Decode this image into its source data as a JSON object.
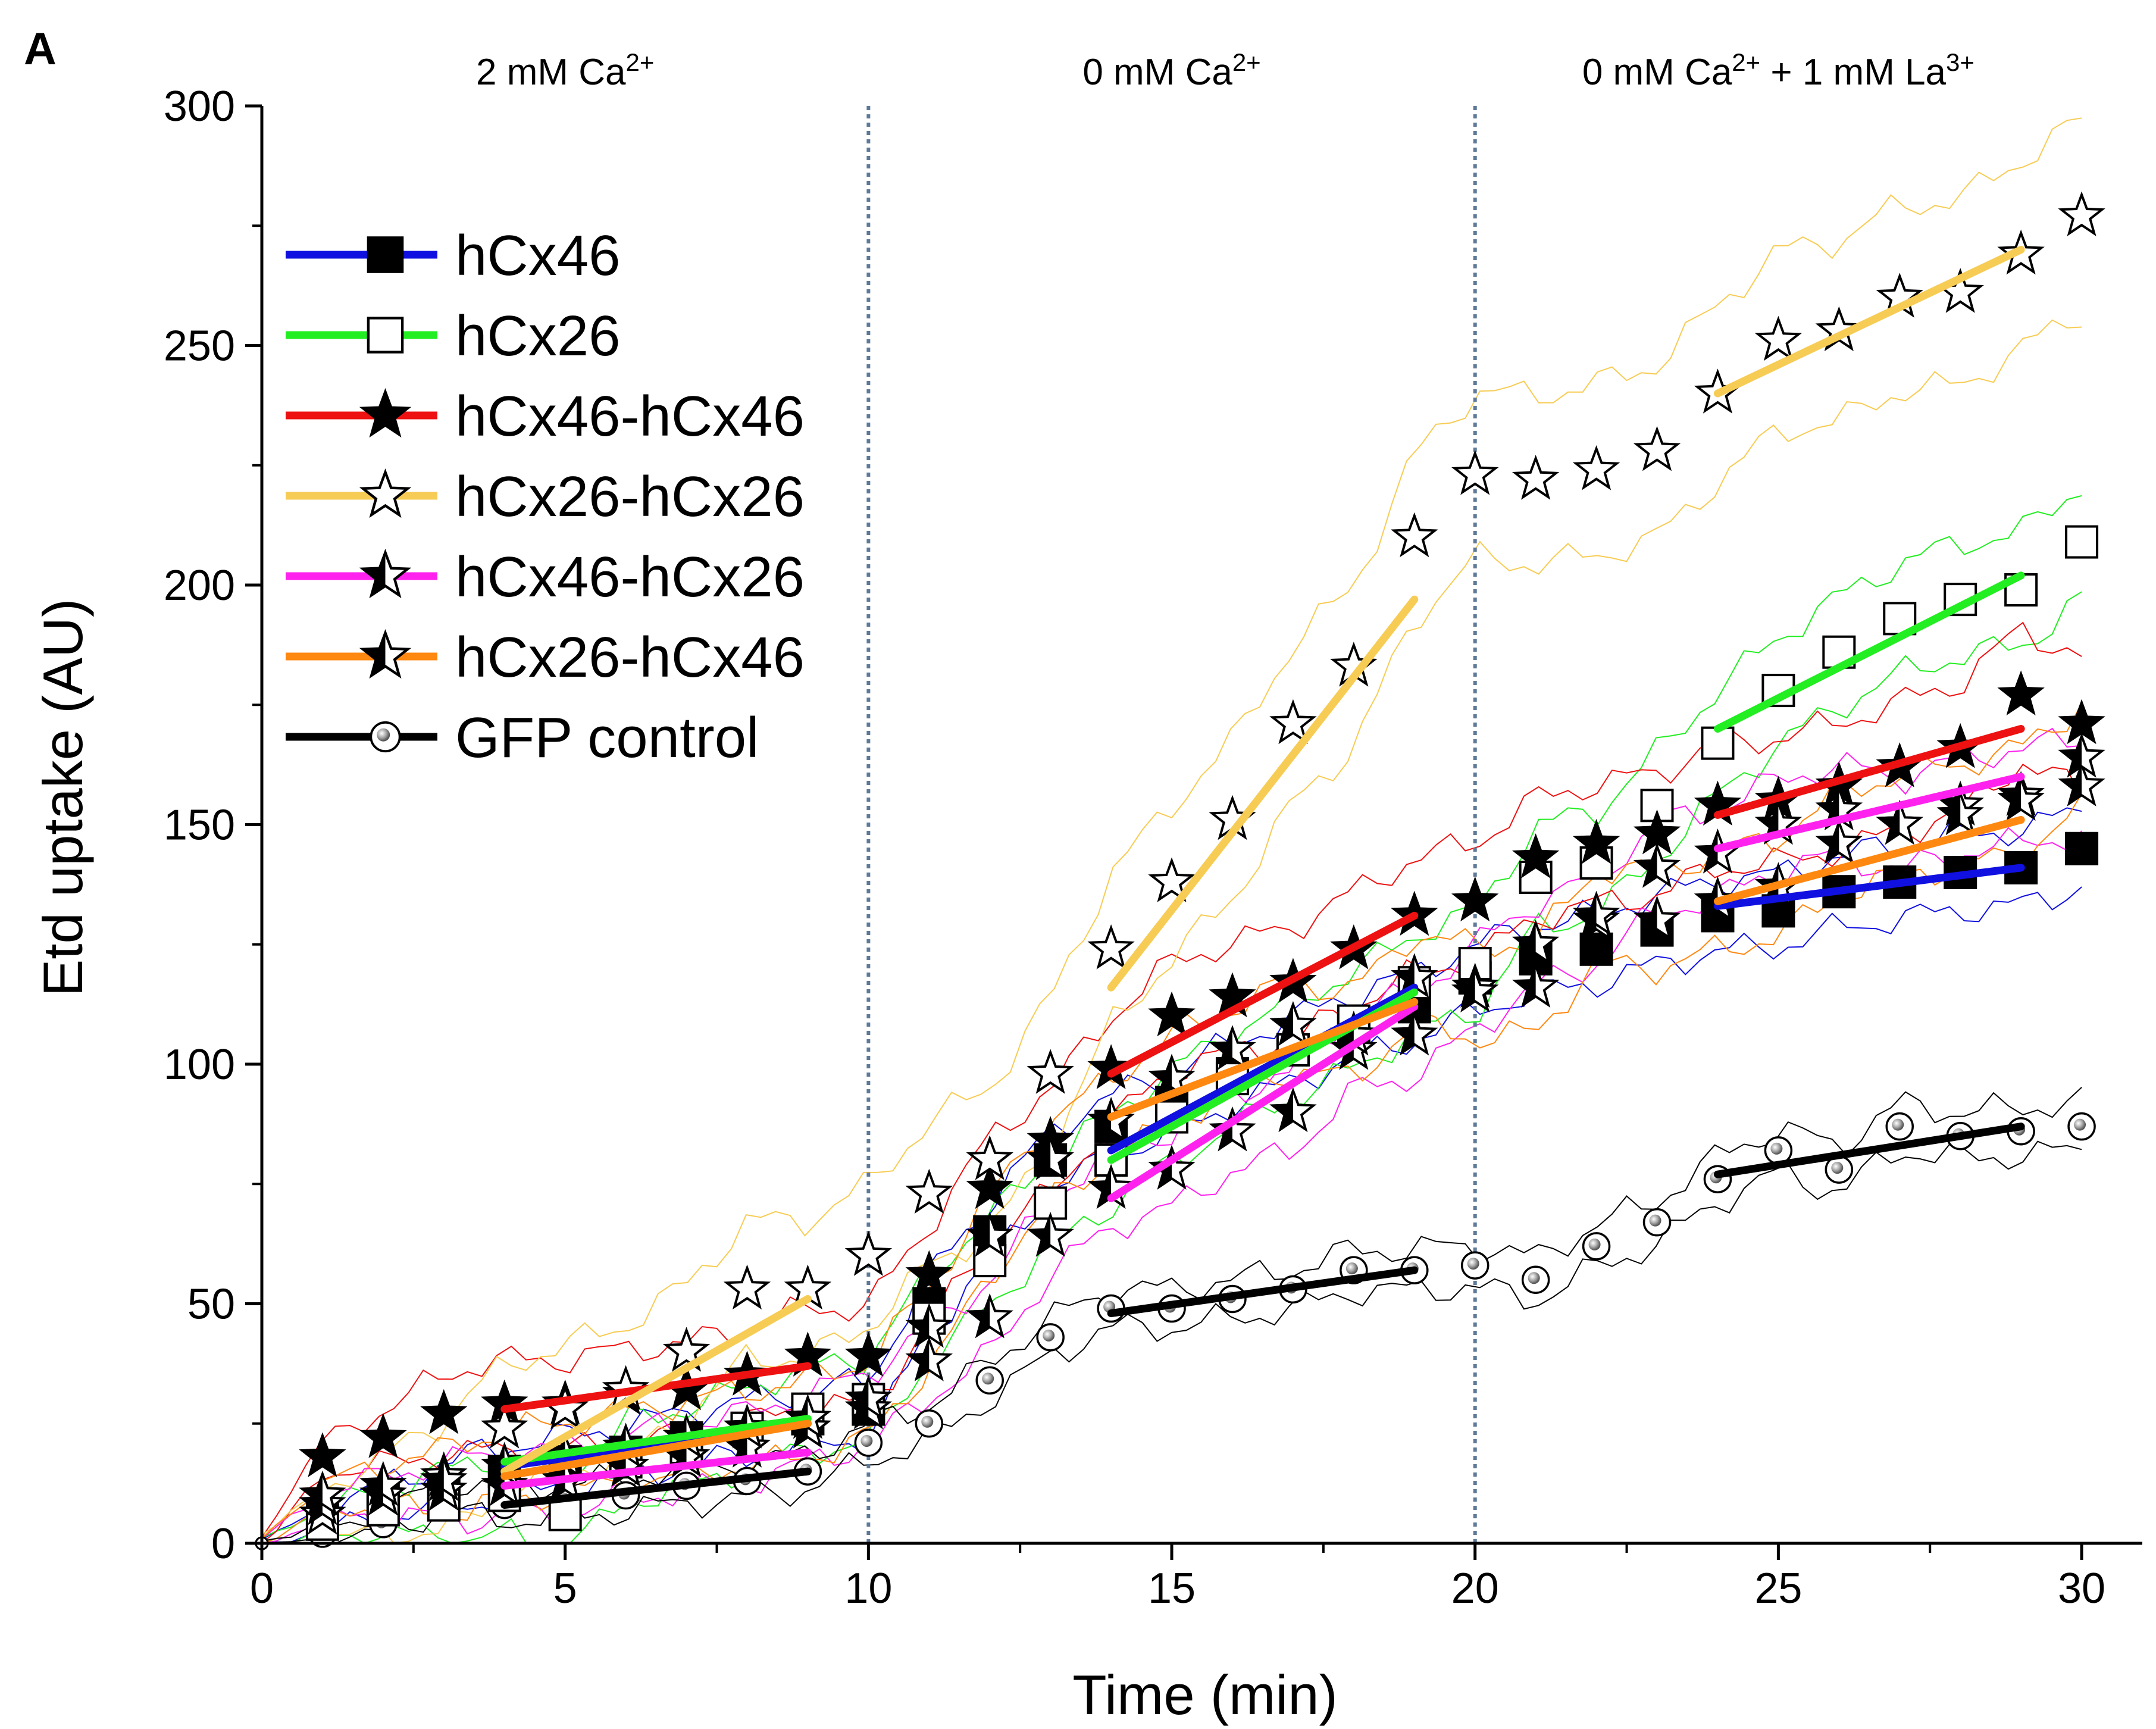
{
  "panel_letter": "A",
  "chart_data": {
    "type": "scatter",
    "title": "",
    "xlabel": "Time (min)",
    "ylabel": "Etd uptake (AU)",
    "xlim": [
      0,
      31
    ],
    "ylim": [
      0,
      300
    ],
    "x_ticks": [
      0,
      5,
      10,
      15,
      20,
      25,
      30
    ],
    "y_ticks": [
      0,
      50,
      100,
      150,
      200,
      250,
      300
    ],
    "grid": false,
    "legend_position": "top-left",
    "regions": [
      {
        "label_html": "2 mM Ca<tspan baseline-shift=\"super\" font-size=\"42px\">2+</tspan>",
        "center": 5
      },
      {
        "label_html": "0 mM Ca<tspan baseline-shift=\"super\" font-size=\"42px\">2+</tspan>",
        "center": 15
      },
      {
        "label_html": "0 mM Ca<tspan baseline-shift=\"super\" font-size=\"42px\">2+</tspan> + 1 mM La<tspan baseline-shift=\"super\" font-size=\"42px\">3+</tspan>",
        "center": 25
      }
    ],
    "region_texts": [
      "2 mM Ca2+",
      "0 mM Ca2+",
      "0 mM Ca2+ + 1 mM La3+"
    ],
    "dividers": [
      10,
      20
    ],
    "divider_color": "#5f7a99",
    "series": [
      {
        "name": "hCx46",
        "marker": "square-filled",
        "line_color": "#1010e0",
        "x": [
          0,
          1,
          2,
          3,
          4,
          5,
          6,
          7,
          8,
          9,
          10,
          11,
          12,
          13,
          14,
          15,
          16,
          17,
          18,
          19,
          20,
          21,
          22,
          23,
          24,
          25,
          26,
          27,
          28,
          29,
          30
        ],
        "y": [
          0,
          5,
          9,
          12,
          15,
          17,
          19,
          22,
          24,
          26,
          28,
          50,
          65,
          80,
          87,
          92,
          98,
          103,
          108,
          112,
          118,
          122,
          124,
          128,
          131,
          132,
          136,
          138,
          140,
          141,
          145
        ],
        "fits": [
          [
            4,
            16,
            9,
            25
          ],
          [
            14,
            82,
            19,
            116
          ],
          [
            24,
            133,
            29,
            141
          ]
        ]
      },
      {
        "name": "hCx26",
        "marker": "square-open",
        "line_color": "#22ee22",
        "x": [
          0,
          1,
          2,
          3,
          4,
          5,
          6,
          7,
          8,
          9,
          10,
          11,
          12,
          13,
          14,
          15,
          16,
          17,
          18,
          19,
          20,
          21,
          22,
          23,
          24,
          25,
          26,
          27,
          28,
          29,
          30
        ],
        "y": [
          0,
          4,
          7,
          8,
          10,
          6,
          17,
          20,
          24,
          28,
          30,
          47,
          59,
          71,
          80,
          89,
          97,
          103,
          109,
          117,
          121,
          139,
          142,
          154,
          167,
          178,
          186,
          193,
          197,
          199,
          209
        ],
        "fits": [
          [
            4,
            17,
            9,
            26
          ],
          [
            14,
            80,
            19,
            115
          ],
          [
            24,
            170,
            29,
            202
          ]
        ]
      },
      {
        "name": "hCx46-hCx46",
        "marker": "star-filled",
        "line_color": "#ee1111",
        "x": [
          0,
          1,
          2,
          3,
          4,
          5,
          6,
          7,
          8,
          9,
          10,
          11,
          12,
          13,
          14,
          15,
          16,
          17,
          18,
          19,
          20,
          21,
          22,
          23,
          24,
          25,
          26,
          27,
          28,
          29,
          30
        ],
        "y": [
          0,
          18,
          22,
          27,
          29,
          29,
          31,
          32,
          35,
          39,
          39,
          56,
          74,
          84,
          99,
          110,
          114,
          117,
          124,
          131,
          134,
          143,
          146,
          148,
          154,
          155,
          158,
          162,
          166,
          177,
          171
        ],
        "fits": [
          [
            4,
            28,
            9,
            37
          ],
          [
            14,
            98,
            19,
            131
          ],
          [
            24,
            152,
            29,
            170
          ]
        ]
      },
      {
        "name": "hCx26-hCx26",
        "marker": "star-open",
        "line_color": "#f7cc55",
        "x": [
          0,
          1,
          2,
          3,
          4,
          5,
          6,
          7,
          8,
          9,
          10,
          11,
          12,
          13,
          14,
          15,
          16,
          17,
          18,
          19,
          20,
          21,
          22,
          23,
          24,
          25,
          26,
          27,
          28,
          29,
          30
        ],
        "y": [
          0,
          6,
          10,
          14,
          24,
          28,
          32,
          40,
          53,
          53,
          60,
          73,
          80,
          98,
          124,
          138,
          151,
          171,
          183,
          210,
          223,
          222,
          224,
          228,
          240,
          251,
          253,
          260,
          261,
          269,
          277
        ],
        "fits": [
          [
            4,
            15,
            9,
            51
          ],
          [
            14,
            116,
            19,
            197
          ],
          [
            24,
            240,
            29,
            270
          ]
        ]
      },
      {
        "name": "hCx46-hCx26",
        "marker": "star-half",
        "line_color": "#ff22ee",
        "x": [
          0,
          1,
          2,
          3,
          4,
          5,
          6,
          7,
          8,
          9,
          10,
          11,
          12,
          13,
          14,
          15,
          16,
          17,
          18,
          19,
          20,
          21,
          22,
          23,
          24,
          25,
          26,
          27,
          28,
          29,
          30
        ],
        "y": [
          0,
          8,
          10,
          11,
          12,
          13,
          16,
          18,
          20,
          24,
          28,
          38,
          47,
          64,
          74,
          78,
          86,
          90,
          103,
          106,
          116,
          125,
          130,
          141,
          144,
          150,
          153,
          150,
          154,
          156,
          158
        ],
        "fits": [
          [
            4,
            12,
            9,
            19
          ],
          [
            14,
            72,
            19,
            112
          ],
          [
            24,
            145,
            29,
            160
          ]
        ]
      },
      {
        "name": "hCx26-hCx46",
        "marker": "star-half",
        "line_color": "#ff8811",
        "x": [
          0,
          1,
          2,
          3,
          4,
          5,
          6,
          7,
          8,
          9,
          10,
          11,
          12,
          13,
          14,
          15,
          16,
          17,
          18,
          19,
          20,
          21,
          22,
          23,
          24,
          25,
          26,
          27,
          28,
          29,
          30
        ],
        "y": [
          0,
          10,
          12,
          13,
          16,
          18,
          20,
          22,
          24,
          26,
          30,
          45,
          64,
          80,
          88,
          97,
          103,
          108,
          106,
          118,
          115,
          116,
          131,
          130,
          134,
          137,
          146,
          150,
          152,
          155,
          164
        ],
        "fits": [
          [
            4,
            14,
            9,
            25
          ],
          [
            14,
            89,
            19,
            113
          ],
          [
            24,
            134,
            29,
            151
          ]
        ]
      },
      {
        "name": "GFP control",
        "marker": "circle-shaded",
        "line_color": "#000000",
        "x": [
          0,
          1,
          2,
          3,
          4,
          5,
          6,
          7,
          8,
          9,
          10,
          11,
          12,
          13,
          14,
          15,
          16,
          17,
          18,
          19,
          20,
          21,
          22,
          23,
          24,
          25,
          26,
          27,
          28,
          29,
          30
        ],
        "y": [
          0,
          2,
          4,
          10,
          8,
          9,
          10,
          12,
          13,
          15,
          21,
          25,
          34,
          43,
          49,
          49,
          51,
          53,
          57,
          57,
          58,
          55,
          62,
          67,
          76,
          82,
          78,
          87,
          85,
          86,
          87
        ],
        "fits": [
          [
            4,
            8,
            9,
            15
          ],
          [
            14,
            48,
            19,
            57
          ],
          [
            24,
            77,
            29,
            87
          ]
        ]
      }
    ]
  }
}
